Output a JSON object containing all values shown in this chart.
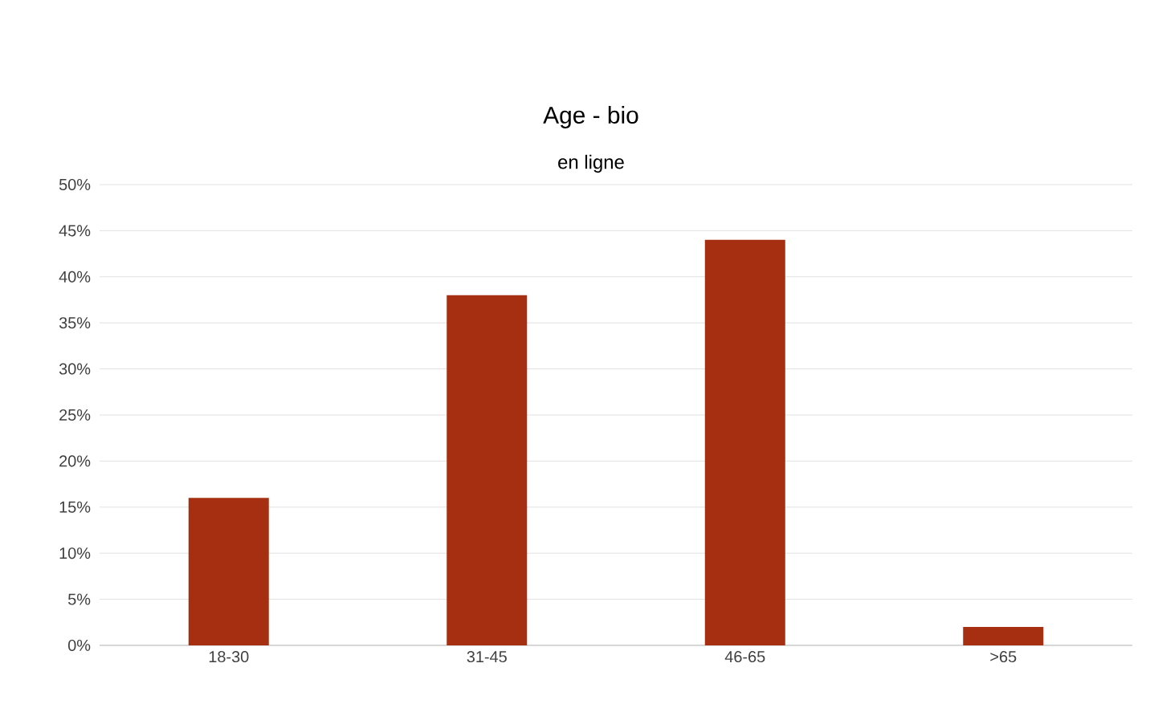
{
  "chart_data": {
    "type": "bar",
    "title": "Age - bio",
    "subtitle": "en ligne",
    "categories": [
      "18-30",
      "31-45",
      "46-65",
      ">65"
    ],
    "values": [
      16,
      38,
      44,
      2
    ],
    "color": "#a52f10",
    "ylim": [
      0,
      50
    ],
    "yticks": [
      {
        "value": 0,
        "label": "0%"
      },
      {
        "value": 5,
        "label": "5%"
      },
      {
        "value": 10,
        "label": "10%"
      },
      {
        "value": 15,
        "label": "15%"
      },
      {
        "value": 20,
        "label": "20%"
      },
      {
        "value": 25,
        "label": "25%"
      },
      {
        "value": 30,
        "label": "30%"
      },
      {
        "value": 35,
        "label": "35%"
      },
      {
        "value": 40,
        "label": "40%"
      },
      {
        "value": 45,
        "label": "45%"
      },
      {
        "value": 50,
        "label": "50%"
      }
    ],
    "grid": "y"
  }
}
